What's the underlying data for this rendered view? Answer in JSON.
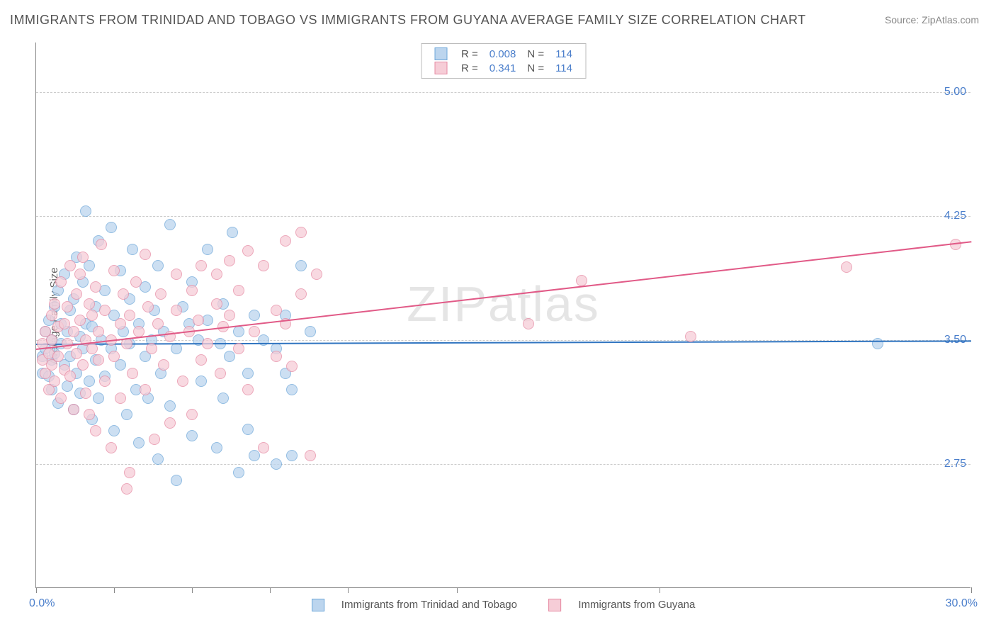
{
  "title": "IMMIGRANTS FROM TRINIDAD AND TOBAGO VS IMMIGRANTS FROM GUYANA AVERAGE FAMILY SIZE CORRELATION CHART",
  "source": "Source: ZipAtlas.com",
  "ylabel": "Average Family Size",
  "watermark": "ZIPatlas",
  "chart": {
    "type": "scatter",
    "xlim": [
      0,
      30
    ],
    "ylim": [
      2.0,
      5.3
    ],
    "x_start_label": "0.0%",
    "x_end_label": "30.0%",
    "y_ticks": [
      2.75,
      3.5,
      4.25,
      5.0
    ],
    "y_tick_labels": [
      "2.75",
      "3.50",
      "4.25",
      "5.00"
    ],
    "x_tick_positions": [
      0,
      2.5,
      5,
      7.5,
      10,
      13.5,
      20,
      30
    ],
    "grid_color": "#cccccc",
    "axis_color": "#888888",
    "background": "#ffffff",
    "point_radius": 8,
    "series": [
      {
        "id": "trinidad",
        "label": "Immigrants from Trinidad and Tobago",
        "legend_R": "0.008",
        "legend_N": "114",
        "fill": "#bcd5ee",
        "stroke": "#6ea7d9",
        "line_color": "#2f74c0",
        "regression": {
          "x1": 0,
          "y1": 3.48,
          "x2": 30,
          "y2": 3.5
        },
        "points": [
          [
            0.2,
            3.4
          ],
          [
            0.2,
            3.3
          ],
          [
            0.3,
            3.45
          ],
          [
            0.3,
            3.55
          ],
          [
            0.4,
            3.28
          ],
          [
            0.4,
            3.62
          ],
          [
            0.5,
            3.38
          ],
          [
            0.5,
            3.5
          ],
          [
            0.5,
            3.2
          ],
          [
            0.6,
            3.7
          ],
          [
            0.6,
            3.42
          ],
          [
            0.7,
            3.12
          ],
          [
            0.7,
            3.8
          ],
          [
            0.8,
            3.48
          ],
          [
            0.8,
            3.6
          ],
          [
            0.9,
            3.35
          ],
          [
            0.9,
            3.9
          ],
          [
            1.0,
            3.22
          ],
          [
            1.0,
            3.55
          ],
          [
            1.1,
            3.68
          ],
          [
            1.1,
            3.4
          ],
          [
            1.2,
            3.08
          ],
          [
            1.2,
            3.75
          ],
          [
            1.3,
            4.0
          ],
          [
            1.3,
            3.3
          ],
          [
            1.4,
            3.52
          ],
          [
            1.4,
            3.18
          ],
          [
            1.5,
            3.85
          ],
          [
            1.5,
            3.45
          ],
          [
            1.6,
            4.28
          ],
          [
            1.6,
            3.6
          ],
          [
            1.7,
            3.25
          ],
          [
            1.7,
            3.95
          ],
          [
            1.8,
            3.02
          ],
          [
            1.8,
            3.58
          ],
          [
            1.9,
            3.7
          ],
          [
            1.9,
            3.38
          ],
          [
            2.0,
            4.1
          ],
          [
            2.0,
            3.15
          ],
          [
            2.1,
            3.5
          ],
          [
            2.2,
            3.8
          ],
          [
            2.2,
            3.28
          ],
          [
            2.4,
            4.18
          ],
          [
            2.4,
            3.45
          ],
          [
            2.5,
            2.95
          ],
          [
            2.5,
            3.65
          ],
          [
            2.7,
            3.92
          ],
          [
            2.7,
            3.35
          ],
          [
            2.8,
            3.55
          ],
          [
            2.9,
            3.05
          ],
          [
            3.0,
            3.75
          ],
          [
            3.0,
            3.48
          ],
          [
            3.1,
            4.05
          ],
          [
            3.2,
            3.2
          ],
          [
            3.3,
            2.88
          ],
          [
            3.3,
            3.6
          ],
          [
            3.5,
            3.4
          ],
          [
            3.5,
            3.82
          ],
          [
            3.6,
            3.15
          ],
          [
            3.7,
            3.5
          ],
          [
            3.8,
            3.68
          ],
          [
            3.9,
            2.78
          ],
          [
            3.9,
            3.95
          ],
          [
            4.0,
            3.3
          ],
          [
            4.1,
            3.55
          ],
          [
            4.3,
            4.2
          ],
          [
            4.3,
            3.1
          ],
          [
            4.5,
            3.45
          ],
          [
            4.5,
            2.65
          ],
          [
            4.7,
            3.7
          ],
          [
            4.9,
            3.6
          ],
          [
            5.0,
            3.85
          ],
          [
            5.0,
            2.92
          ],
          [
            5.2,
            3.5
          ],
          [
            5.3,
            3.25
          ],
          [
            5.5,
            3.62
          ],
          [
            5.5,
            4.05
          ],
          [
            5.8,
            2.85
          ],
          [
            5.9,
            3.48
          ],
          [
            6.0,
            3.15
          ],
          [
            6.0,
            3.72
          ],
          [
            6.2,
            3.4
          ],
          [
            6.3,
            4.15
          ],
          [
            6.5,
            3.55
          ],
          [
            6.5,
            2.7
          ],
          [
            6.8,
            3.3
          ],
          [
            6.8,
            2.96
          ],
          [
            7.0,
            3.65
          ],
          [
            7.0,
            2.8
          ],
          [
            7.3,
            3.5
          ],
          [
            7.7,
            3.45
          ],
          [
            7.7,
            2.75
          ],
          [
            8.0,
            3.65
          ],
          [
            8.0,
            3.3
          ],
          [
            8.2,
            3.2
          ],
          [
            8.2,
            2.8
          ],
          [
            8.5,
            3.95
          ],
          [
            8.8,
            3.55
          ],
          [
            27.0,
            3.48
          ]
        ]
      },
      {
        "id": "guyana",
        "label": "Immigrants from Guyana",
        "legend_R": "0.341",
        "legend_N": "114",
        "fill": "#f6cdd7",
        "stroke": "#e68aa3",
        "line_color": "#e15a87",
        "regression": {
          "x1": 0,
          "y1": 3.45,
          "x2": 30,
          "y2": 4.1
        },
        "points": [
          [
            0.2,
            3.38
          ],
          [
            0.2,
            3.48
          ],
          [
            0.3,
            3.3
          ],
          [
            0.3,
            3.55
          ],
          [
            0.4,
            3.42
          ],
          [
            0.4,
            3.2
          ],
          [
            0.5,
            3.65
          ],
          [
            0.5,
            3.35
          ],
          [
            0.5,
            3.5
          ],
          [
            0.6,
            3.72
          ],
          [
            0.6,
            3.25
          ],
          [
            0.7,
            3.58
          ],
          [
            0.7,
            3.4
          ],
          [
            0.8,
            3.85
          ],
          [
            0.8,
            3.15
          ],
          [
            0.9,
            3.6
          ],
          [
            0.9,
            3.32
          ],
          [
            1.0,
            3.48
          ],
          [
            1.0,
            3.7
          ],
          [
            1.1,
            3.95
          ],
          [
            1.1,
            3.28
          ],
          [
            1.2,
            3.55
          ],
          [
            1.2,
            3.08
          ],
          [
            1.3,
            3.78
          ],
          [
            1.3,
            3.42
          ],
          [
            1.4,
            3.62
          ],
          [
            1.4,
            3.9
          ],
          [
            1.5,
            3.35
          ],
          [
            1.5,
            4.0
          ],
          [
            1.6,
            3.5
          ],
          [
            1.6,
            3.18
          ],
          [
            1.7,
            3.72
          ],
          [
            1.7,
            3.05
          ],
          [
            1.8,
            3.65
          ],
          [
            1.8,
            3.45
          ],
          [
            1.9,
            3.82
          ],
          [
            1.9,
            2.95
          ],
          [
            2.0,
            3.55
          ],
          [
            2.0,
            3.38
          ],
          [
            2.1,
            4.08
          ],
          [
            2.2,
            3.25
          ],
          [
            2.2,
            3.68
          ],
          [
            2.4,
            3.5
          ],
          [
            2.4,
            2.85
          ],
          [
            2.5,
            3.92
          ],
          [
            2.5,
            3.4
          ],
          [
            2.7,
            3.6
          ],
          [
            2.7,
            3.15
          ],
          [
            2.8,
            3.78
          ],
          [
            2.9,
            3.48
          ],
          [
            2.9,
            2.6
          ],
          [
            3.0,
            3.65
          ],
          [
            3.0,
            2.7
          ],
          [
            3.1,
            3.3
          ],
          [
            3.2,
            3.85
          ],
          [
            3.3,
            3.55
          ],
          [
            3.5,
            4.02
          ],
          [
            3.5,
            3.2
          ],
          [
            3.6,
            3.7
          ],
          [
            3.7,
            3.45
          ],
          [
            3.8,
            2.9
          ],
          [
            3.9,
            3.6
          ],
          [
            4.0,
            3.78
          ],
          [
            4.1,
            3.35
          ],
          [
            4.3,
            3.0
          ],
          [
            4.3,
            3.52
          ],
          [
            4.5,
            3.9
          ],
          [
            4.5,
            3.68
          ],
          [
            4.7,
            3.25
          ],
          [
            4.9,
            3.55
          ],
          [
            5.0,
            3.8
          ],
          [
            5.0,
            3.05
          ],
          [
            5.2,
            3.62
          ],
          [
            5.3,
            3.95
          ],
          [
            5.3,
            3.38
          ],
          [
            5.5,
            3.48
          ],
          [
            5.8,
            3.72
          ],
          [
            5.8,
            3.9
          ],
          [
            5.9,
            3.3
          ],
          [
            6.0,
            3.58
          ],
          [
            6.2,
            3.98
          ],
          [
            6.2,
            3.65
          ],
          [
            6.5,
            3.45
          ],
          [
            6.5,
            3.8
          ],
          [
            6.8,
            3.2
          ],
          [
            6.8,
            4.04
          ],
          [
            7.0,
            3.55
          ],
          [
            7.3,
            3.95
          ],
          [
            7.3,
            2.85
          ],
          [
            7.7,
            3.68
          ],
          [
            7.7,
            3.4
          ],
          [
            8.0,
            4.1
          ],
          [
            8.0,
            3.6
          ],
          [
            8.2,
            3.34
          ],
          [
            8.5,
            4.15
          ],
          [
            8.5,
            3.78
          ],
          [
            8.8,
            2.8
          ],
          [
            9.0,
            3.9
          ],
          [
            15.8,
            3.6
          ],
          [
            17.5,
            3.86
          ],
          [
            21.0,
            3.52
          ],
          [
            26.0,
            3.94
          ],
          [
            29.5,
            4.08
          ]
        ]
      }
    ]
  }
}
